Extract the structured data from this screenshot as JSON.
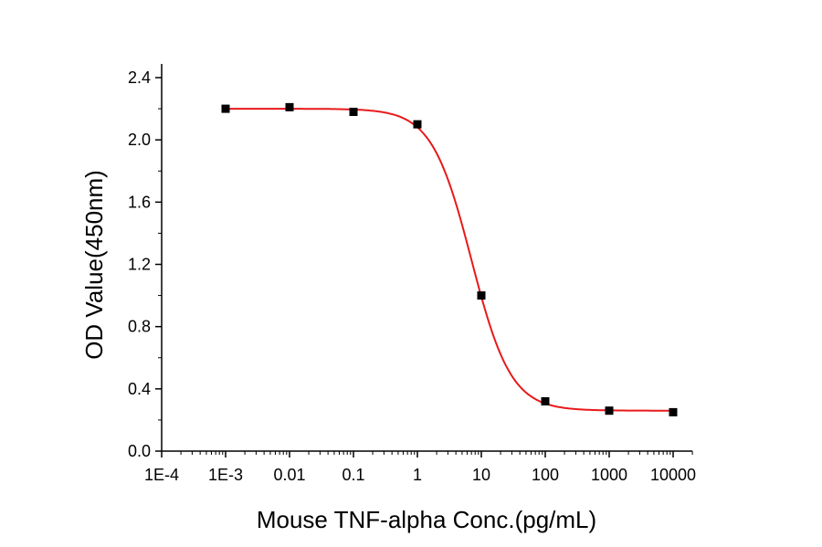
{
  "chart_data": {
    "type": "scatter",
    "title": "",
    "xlabel": "Mouse TNF-alpha Conc.(pg/mL)",
    "ylabel": "OD Value(450nm)",
    "x_scale": "log",
    "xlim": [
      0.0001,
      20000
    ],
    "ylim": [
      0,
      2.4
    ],
    "x_ticks": [
      0.0001,
      0.001,
      0.01,
      0.1,
      1,
      10,
      100,
      1000,
      10000
    ],
    "x_tick_labels": [
      "1E-4",
      "1E-3",
      "0.01",
      "0.1",
      "1",
      "10",
      "100",
      "1000",
      "10000"
    ],
    "y_ticks": [
      0,
      0.4,
      0.8,
      1.2,
      1.6,
      2.0,
      2.4
    ],
    "y_tick_labels": [
      "0.0",
      "0.4",
      "0.8",
      "1.2",
      "1.6",
      "2.0",
      "2.4"
    ],
    "grid": false,
    "series": [
      {
        "x": [
          0.001,
          0.01,
          0.1,
          1,
          10,
          100,
          1000,
          10000
        ],
        "y": [
          2.2,
          2.21,
          2.18,
          2.1,
          1.0,
          0.32,
          0.26,
          0.25
        ],
        "marker": "square",
        "color": "#000000"
      }
    ],
    "fit_curve": {
      "model": "4PL",
      "top": 2.2,
      "bottom": 0.26,
      "ec50": 7,
      "hill": 1.4,
      "color": "#e8191b"
    }
  }
}
